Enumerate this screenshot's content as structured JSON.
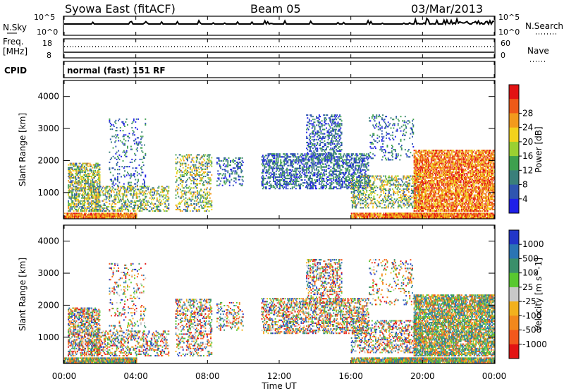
{
  "header": {
    "station": "Syowa East (fitACF)",
    "beam": "Beam 05",
    "date": "03/Mar/2013"
  },
  "labels": {
    "nsky": "N.Sky",
    "nsearch": "N.Search",
    "freq": "Freq.",
    "freq_unit": "[MHz]",
    "nave": "Nave",
    "cpid": "CPID",
    "cpid_value": "normal (fast) 151 RF",
    "nsky_top": "10^5",
    "nsky_bottom": "10^0",
    "nsearch_top": "10^5",
    "nsearch_bottom": "10^0",
    "freq_top": "18",
    "freq_bottom": "8",
    "nave_top": "60",
    "nave_bottom": "0"
  },
  "chart_data": [
    {
      "type": "heatmap",
      "name": "power",
      "ylabel": "Slant Range [km]",
      "colorbar_label": "Power [dB]",
      "yticks": [
        "1000",
        "2000",
        "3000",
        "4000"
      ],
      "ylim": [
        180,
        4500
      ],
      "xlim": [
        0,
        24
      ],
      "colorbar_ticks": [
        "4",
        "8",
        "12",
        "16",
        "20",
        "24",
        "28"
      ],
      "colors": [
        "#1f1fe8",
        "#2f55b0",
        "#3a7f7a",
        "#3ea04e",
        "#9ad032",
        "#f2d21c",
        "#f29a1c",
        "#ee5a18",
        "#e21313"
      ],
      "description_of_data": "Scatter echoes: strong ground scatter (red/orange) near 200-350 km around 00-04 UT and 17-24 UT; broad scatter 500-1800 km 00-02 UT and 20-24 UT; patches 1000-3300 km 13-17 UT (blue/green)."
    },
    {
      "type": "heatmap",
      "name": "velocity",
      "ylabel": "Slant Range [km]",
      "xlabel": "Time UT",
      "colorbar_label": "Velocity [m s^-1]",
      "yticks": [
        "1000",
        "2000",
        "3000",
        "4000"
      ],
      "ylim": [
        180,
        4500
      ],
      "xlim": [
        0,
        24
      ],
      "xticks": [
        "00:00",
        "04:00",
        "08:00",
        "12:00",
        "16:00",
        "20:00",
        "00:00"
      ],
      "colorbar_ticks": [
        "1000",
        "500",
        "100",
        "25",
        "-25",
        "-100",
        "-500",
        "-1000"
      ],
      "colors": [
        "#2236c8",
        "#2a74b4",
        "#3a8f6a",
        "#58c830",
        "#c8c8c8",
        "#f2b11c",
        "#f2881c",
        "#f2581c",
        "#e21313"
      ]
    }
  ]
}
